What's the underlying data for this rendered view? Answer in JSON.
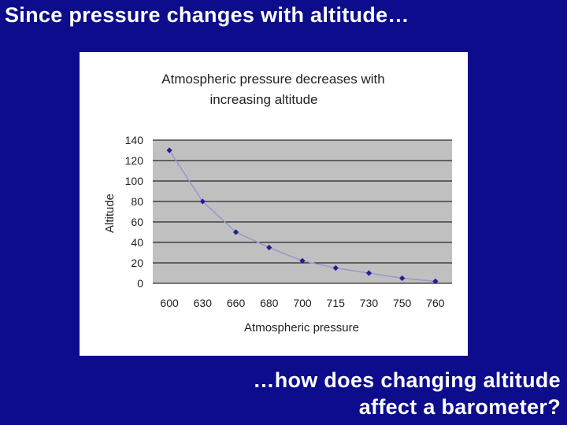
{
  "slide": {
    "title": "Since pressure changes with altitude…",
    "caption_line1": "…how does changing altitude",
    "caption_line2": "affect a barometer?"
  },
  "colors": {
    "background": "#0c0c8c",
    "plot_area": "#c0c0c0",
    "series_line": "#9999cc",
    "series_marker": "#1f1f8f"
  },
  "chart_data": {
    "type": "line",
    "title_line1": "Atmospheric pressure decreases with",
    "title_line2": "increasing altitude",
    "xlabel": "Atmospheric pressure",
    "ylabel": "Altitude",
    "categories": [
      "600",
      "630",
      "660",
      "680",
      "700",
      "715",
      "730",
      "750",
      "760"
    ],
    "ylim": [
      0,
      140
    ],
    "yticks": [
      0,
      20,
      40,
      60,
      80,
      100,
      120,
      140
    ],
    "grid": true,
    "legend": "none",
    "series": [
      {
        "values": [
          130,
          80,
          50,
          35,
          22,
          15,
          10,
          5,
          2
        ]
      }
    ]
  }
}
